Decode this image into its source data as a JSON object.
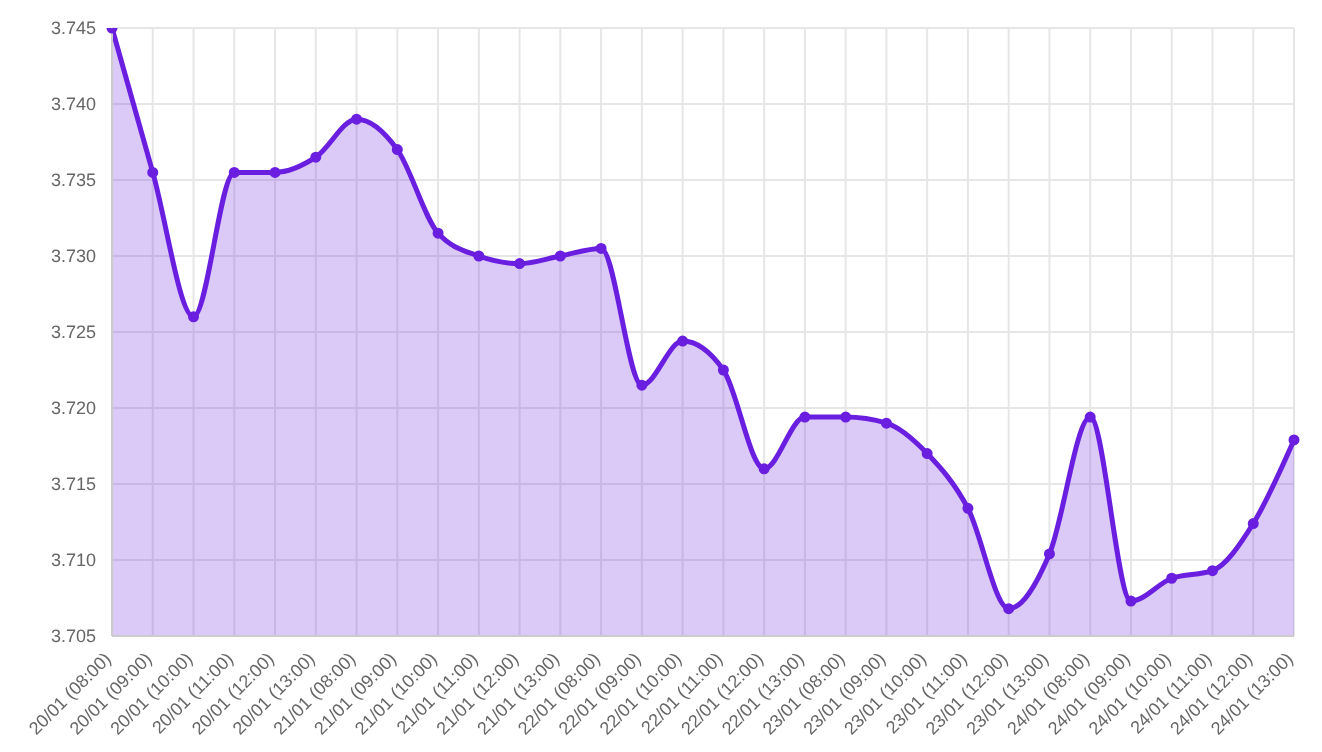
{
  "chart_data": {
    "type": "area",
    "categories": [
      "20/01 (08:00)",
      "20/01 (09:00)",
      "20/01 (10:00)",
      "20/01 (11:00)",
      "20/01 (12:00)",
      "20/01 (13:00)",
      "21/01 (08:00)",
      "21/01 (09:00)",
      "21/01 (10:00)",
      "21/01 (11:00)",
      "21/01 (12:00)",
      "21/01 (13:00)",
      "22/01 (08:00)",
      "22/01 (09:00)",
      "22/01 (10:00)",
      "22/01 (11:00)",
      "22/01 (12:00)",
      "22/01 (13:00)",
      "23/01 (08:00)",
      "23/01 (09:00)",
      "23/01 (10:00)",
      "23/01 (11:00)",
      "23/01 (12:00)",
      "23/01 (13:00)",
      "24/01 (08:00)",
      "24/01 (09:00)",
      "24/01 (10:00)",
      "24/01 (11:00)",
      "24/01 (12:00)",
      "24/01 (13:00)"
    ],
    "series": [
      {
        "color": "#6a1ee0",
        "values": [
          3.745,
          3.7355,
          3.726,
          3.7355,
          3.7355,
          3.7365,
          3.739,
          3.737,
          3.7315,
          3.73,
          3.7295,
          3.73,
          3.7305,
          3.7215,
          3.7244,
          3.7225,
          3.716,
          3.7194,
          3.7194,
          3.719,
          3.717,
          3.7134,
          3.7068,
          3.7104,
          3.7194,
          3.7073,
          3.7088,
          3.7093,
          3.7124,
          3.7179
        ]
      }
    ],
    "ylim": [
      3.705,
      3.745
    ],
    "yticks": [
      3.705,
      {
        "value": 3.71,
        "label": "3.710"
      },
      3.715,
      {
        "value": 3.72,
        "label": "3.720"
      },
      3.725,
      {
        "value": 3.73,
        "label": "3.730"
      },
      3.735,
      {
        "value": 3.74,
        "label": "3.740"
      },
      3.745
    ],
    "grid": true,
    "marker": "circle",
    "line_style": "solid"
  }
}
